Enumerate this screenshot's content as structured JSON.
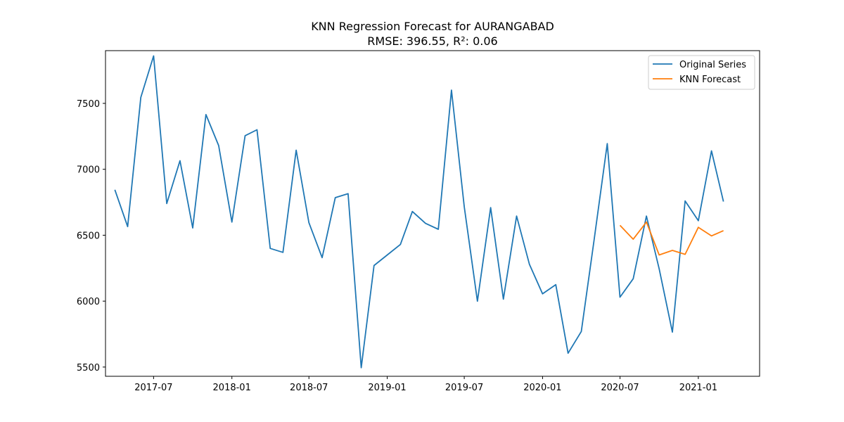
{
  "chart_data": {
    "type": "line",
    "title": "KNN Regression Forecast for AURANGABAD",
    "subtitle": "RMSE: 396.55, R²: 0.06",
    "xlabel": "",
    "ylabel": "",
    "x_ticks": [
      "2017-07",
      "2018-01",
      "2018-07",
      "2019-01",
      "2019-07",
      "2020-01",
      "2020-07",
      "2021-01"
    ],
    "y_ticks": [
      5500,
      6000,
      6500,
      7000,
      7500
    ],
    "xlim": [
      "2017-03-10",
      "2021-05-25"
    ],
    "ylim": [
      5430,
      7900
    ],
    "grid": false,
    "legend_position": "top-right",
    "series": [
      {
        "name": "Original Series",
        "color": "#1f77b4",
        "x": [
          "2017-04",
          "2017-05",
          "2017-06",
          "2017-07",
          "2017-08",
          "2017-09",
          "2017-10",
          "2017-11",
          "2017-12",
          "2018-01",
          "2018-02",
          "2018-03",
          "2018-04",
          "2018-05",
          "2018-06",
          "2018-07",
          "2018-08",
          "2018-09",
          "2018-10",
          "2018-11",
          "2018-12",
          "2019-01",
          "2019-02",
          "2019-03",
          "2019-04",
          "2019-05",
          "2019-06",
          "2019-07",
          "2019-08",
          "2019-09",
          "2019-10",
          "2019-11",
          "2019-12",
          "2020-01",
          "2020-02",
          "2020-03",
          "2020-04",
          "2020-05",
          "2020-06",
          "2020-07",
          "2020-08",
          "2020-09",
          "2020-10",
          "2020-11",
          "2020-12",
          "2021-01",
          "2021-02",
          "2021-03"
        ],
        "values": [
          6845,
          6565,
          7545,
          7860,
          6740,
          7065,
          6555,
          7415,
          7180,
          6600,
          7255,
          7300,
          6400,
          6370,
          7145,
          6595,
          6330,
          6785,
          6815,
          5495,
          6270,
          6350,
          6430,
          6680,
          6590,
          6545,
          7600,
          6715,
          6000,
          6710,
          6015,
          6645,
          6280,
          6055,
          6125,
          5605,
          5770,
          6460,
          7195,
          6030,
          6170,
          6645,
          6245,
          5765,
          6760,
          6610,
          7140,
          6755
        ]
      },
      {
        "name": "KNN Forecast",
        "color": "#ff7f0e",
        "x": [
          "2020-07",
          "2020-08",
          "2020-09",
          "2020-10",
          "2020-11",
          "2020-12",
          "2021-01",
          "2021-02",
          "2021-03"
        ],
        "values": [
          6575,
          6470,
          6600,
          6350,
          6385,
          6355,
          6560,
          6495,
          6535
        ]
      }
    ]
  }
}
